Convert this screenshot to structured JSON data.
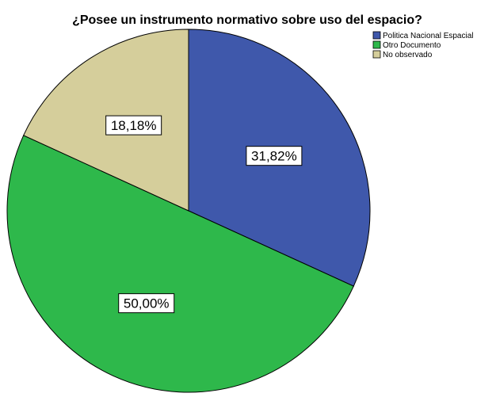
{
  "chart_data": {
    "type": "pie",
    "title": "¿Posee un instrumento normativo sobre uso del espacio?",
    "slices": [
      {
        "label": "Politica Nacional Espacial",
        "value": 31.82,
        "value_label": "31,82%",
        "color": "#3f58ab"
      },
      {
        "label": "Otro Documento",
        "value": 50.0,
        "value_label": "50,00%",
        "color": "#2eb84b"
      },
      {
        "label": "No observado",
        "value": 18.18,
        "value_label": "18,18%",
        "color": "#d5ce9b"
      }
    ],
    "start_angle": "12 o'clock",
    "direction": "clockwise",
    "legend_position": "top-right"
  }
}
